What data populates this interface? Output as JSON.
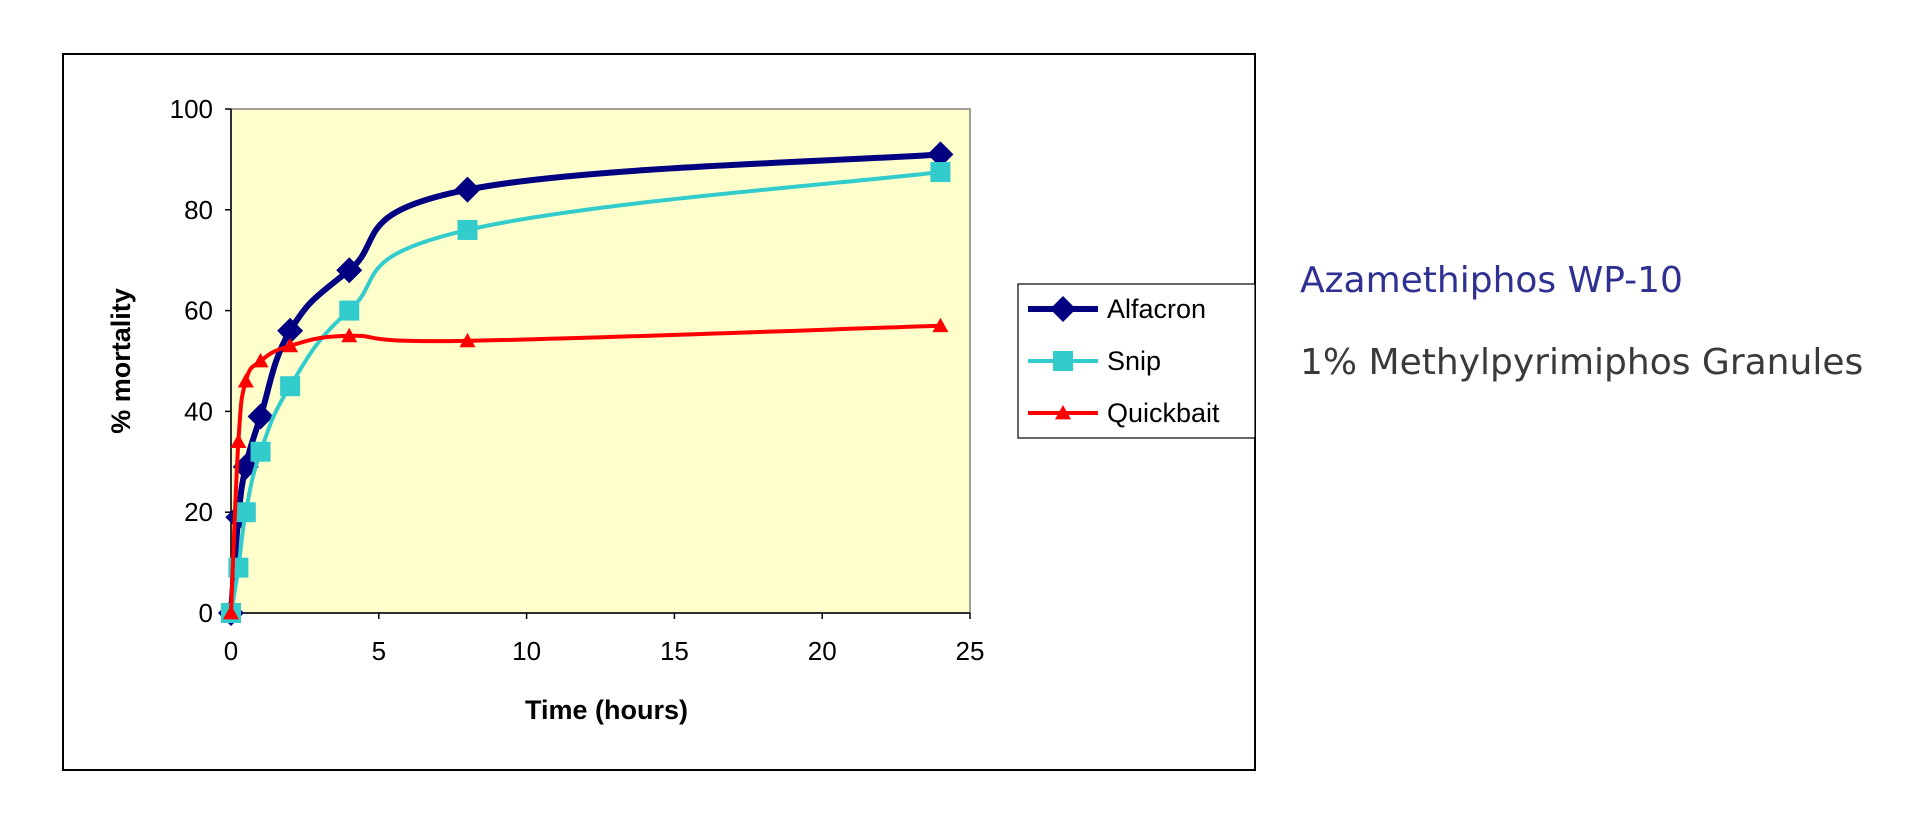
{
  "chart_data": {
    "type": "line",
    "xlabel": "Time (hours)",
    "ylabel": "% mortality",
    "xlim": [
      0,
      25
    ],
    "ylim": [
      0,
      100
    ],
    "xticks": [
      "0",
      "5",
      "10",
      "15",
      "20",
      "25"
    ],
    "yticks": [
      "0",
      "20",
      "40",
      "60",
      "80",
      "100"
    ],
    "plot_background": "#ffffcc",
    "legend_position": "right",
    "series": [
      {
        "name": "Alfacron",
        "color": "#000080",
        "marker": "diamond",
        "x": [
          0,
          0.25,
          0.5,
          1,
          2,
          4,
          8,
          24
        ],
        "y": [
          0,
          19,
          29,
          39,
          56,
          68,
          84,
          91
        ]
      },
      {
        "name": "Snip",
        "color": "#33cccc",
        "marker": "square",
        "x": [
          0,
          0.25,
          0.5,
          1,
          2,
          4,
          8,
          24
        ],
        "y": [
          0,
          9,
          20,
          32,
          45,
          60,
          76,
          87.5
        ]
      },
      {
        "name": "Quickbait",
        "color": "#ff0000",
        "marker": "triangle",
        "x": [
          0,
          0.25,
          0.5,
          1,
          2,
          4,
          8,
          24
        ],
        "y": [
          0,
          34,
          46,
          50,
          53,
          55,
          54,
          57
        ]
      }
    ]
  },
  "side_panel": {
    "title": "Azamethiphos WP-10",
    "subtitle": "1% Methylpyrimiphos Granules"
  }
}
